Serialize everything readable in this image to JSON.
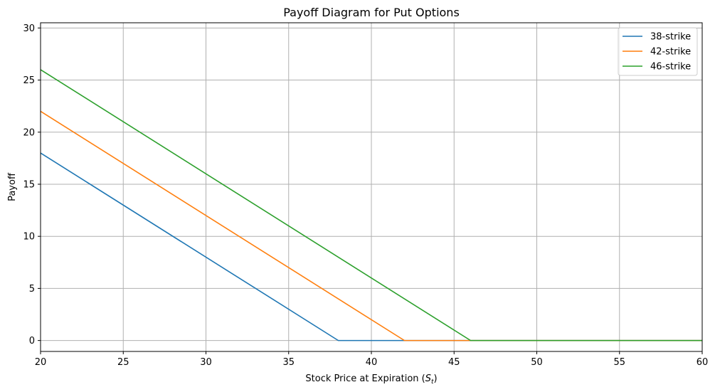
{
  "chart_data": {
    "type": "line",
    "title": "Payoff Diagram for Put Options",
    "xlabel": "Stock Price at Expiration (",
    "xlabel_math": "S",
    "xlabel_sub": "t",
    "xlabel_close": ")",
    "ylabel": "Payoff",
    "xlim": [
      20,
      60
    ],
    "ylim": [
      -1.05,
      30.5
    ],
    "xticks": [
      20,
      25,
      30,
      35,
      40,
      45,
      50,
      55,
      60
    ],
    "yticks": [
      0,
      5,
      10,
      15,
      20,
      25,
      30
    ],
    "grid": true,
    "legend_position": "top-right",
    "series": [
      {
        "name": "38-strike",
        "color": "#1f77b4",
        "x": [
          20,
          38,
          60
        ],
        "y": [
          18,
          0,
          0
        ]
      },
      {
        "name": "42-strike",
        "color": "#ff7f0e",
        "x": [
          20,
          42,
          60
        ],
        "y": [
          22,
          0,
          0
        ]
      },
      {
        "name": "46-strike",
        "color": "#2ca02c",
        "x": [
          20,
          46,
          60
        ],
        "y": [
          26,
          0,
          0
        ]
      }
    ]
  }
}
